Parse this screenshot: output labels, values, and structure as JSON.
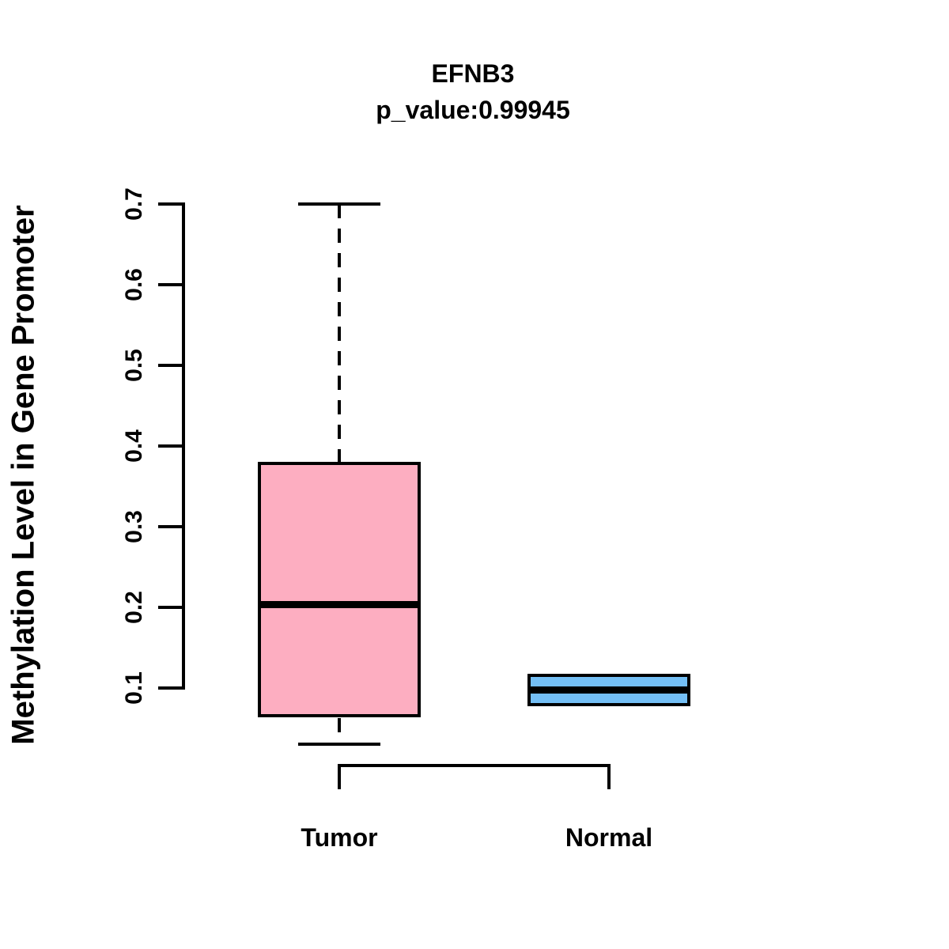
{
  "chart_data": {
    "type": "boxplot",
    "title": "EFNB3",
    "subtitle": "p_value:0.99945",
    "ylabel": "Methylation Level in Gene Promoter",
    "xlabel": "",
    "ylim": [
      0.03,
      0.705
    ],
    "yticks": [
      0.1,
      0.2,
      0.3,
      0.4,
      0.5,
      0.6,
      0.7
    ],
    "ytick_labels": [
      "0.1",
      "0.2",
      "0.3",
      "0.4",
      "0.5",
      "0.6",
      "0.7"
    ],
    "categories": [
      "Tumor",
      "Normal"
    ],
    "series": [
      {
        "name": "Tumor",
        "min": 0.03,
        "q1": 0.063,
        "median": 0.203,
        "q3": 0.38,
        "max": 0.7,
        "fill": "#FDAEC1",
        "whisker_style": "dashed"
      },
      {
        "name": "Normal",
        "min": 0.078,
        "q1": 0.078,
        "median": 0.098,
        "q3": 0.118,
        "max": 0.118,
        "fill": "#74BFF5",
        "whisker_style": "none"
      }
    ],
    "comparison_bracket": {
      "from": "Tumor",
      "to": "Normal",
      "label": ""
    },
    "legend": "none",
    "grid": "off",
    "colors": {
      "box_border": "#000000",
      "median_line": "#000000",
      "axis": "#000000",
      "text": "#000000",
      "background": "#FFFFFF"
    }
  }
}
